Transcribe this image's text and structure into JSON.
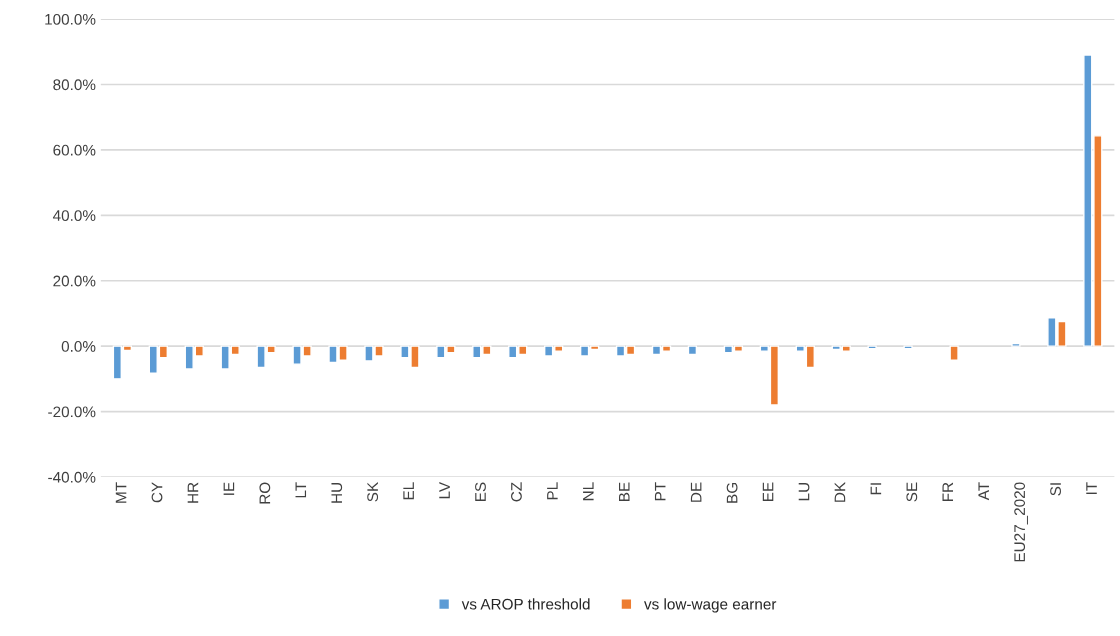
{
  "chart_data": {
    "type": "bar",
    "categories": [
      "MT",
      "CY",
      "HR",
      "IE",
      "RO",
      "LT",
      "HU",
      "SK",
      "EL",
      "LV",
      "ES",
      "CZ",
      "PL",
      "NL",
      "BE",
      "PT",
      "DE",
      "BG",
      "EE",
      "LU",
      "DK",
      "FI",
      "SE",
      "FR",
      "AT",
      "EU27_2020",
      "SI",
      "IT"
    ],
    "series": [
      {
        "name": "vs AROP threshold",
        "color": "#5b9bd5",
        "values": [
          -10,
          -8.3,
          -7,
          -7,
          -6.5,
          -5.5,
          -5,
          -4.5,
          -3.5,
          -3.5,
          -3.5,
          -3.5,
          -3,
          -3,
          -3,
          -2.5,
          -2.5,
          -2,
          -1.5,
          -1.5,
          -1,
          -0.8,
          -0.8,
          null,
          null,
          0.8,
          8.7,
          89
        ]
      },
      {
        "name": "vs low-wage earner",
        "color": "#ed7d31",
        "values": [
          -1.3,
          -3.5,
          -3,
          -2.5,
          -2,
          -3,
          -4.3,
          -3,
          -6.5,
          -2,
          -2.5,
          -2.5,
          -1.5,
          -1,
          -2.5,
          -1.5,
          null,
          -1.5,
          -18,
          -6.5,
          -1.5,
          null,
          null,
          -4.3,
          null,
          null,
          7.5,
          64.3
        ]
      }
    ],
    "ylim": [
      -40,
      100
    ],
    "yticks": [
      {
        "value": -40,
        "label": "-40.0%"
      },
      {
        "value": -20,
        "label": "-20.0%"
      },
      {
        "value": 0,
        "label": "0.0%"
      },
      {
        "value": 20,
        "label": "20.0%"
      },
      {
        "value": 40,
        "label": "40.0%"
      },
      {
        "value": 60,
        "label": "60.0%"
      },
      {
        "value": 80,
        "label": "80.0%"
      },
      {
        "value": 100,
        "label": "100.0%"
      }
    ],
    "grid": "y",
    "legend": "bottom"
  }
}
